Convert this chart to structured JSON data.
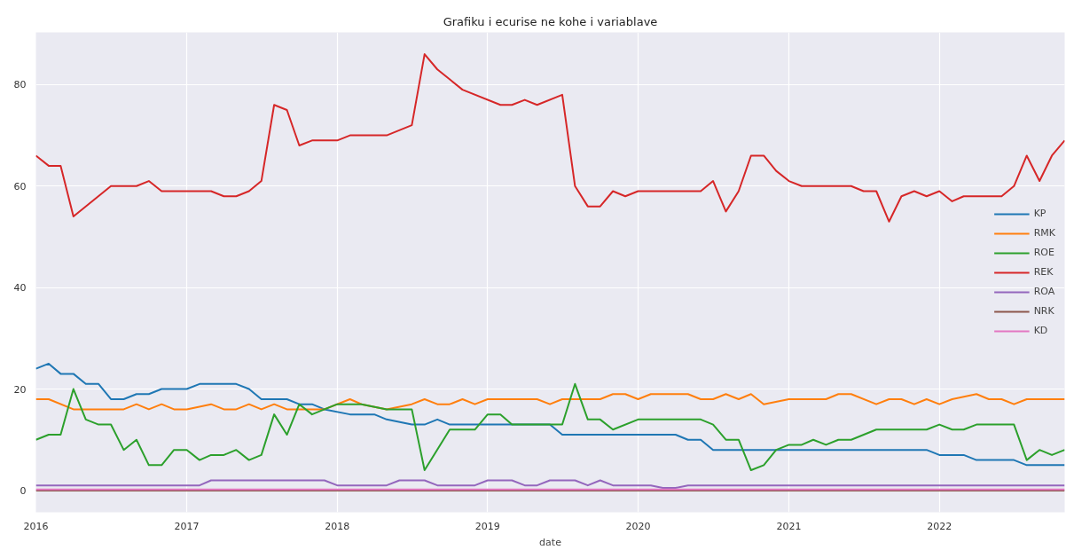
{
  "chart_data": {
    "type": "line",
    "title": "Grafiku i ecurise ne kohe i variablave",
    "xlabel": "date",
    "xlim": [
      "2016-01",
      "2022-11"
    ],
    "xticks": [
      "2016",
      "2017",
      "2018",
      "2019",
      "2020",
      "2021",
      "2022"
    ],
    "ylim": [
      -4.3,
      90.3
    ],
    "yticks": [
      0,
      20,
      40,
      60,
      80
    ],
    "grid": true,
    "legend": "right",
    "marker": "none",
    "line_style": "solid",
    "series": [
      {
        "name": "KP",
        "color": "#1f77b4",
        "x": [
          "2016-01",
          "2016-02",
          "2016-03",
          "2016-04",
          "2016-05",
          "2016-06",
          "2016-07",
          "2016-08",
          "2016-09",
          "2016-10",
          "2016-11",
          "2017-01",
          "2017-02",
          "2017-05",
          "2017-06",
          "2017-07",
          "2017-09",
          "2017-10",
          "2017-11",
          "2017-12",
          "2018-02",
          "2018-04",
          "2018-05",
          "2018-07",
          "2018-08",
          "2018-09",
          "2018-10",
          "2019-06",
          "2019-07",
          "2020-04",
          "2020-05",
          "2020-06",
          "2020-07",
          "2021-12",
          "2022-01",
          "2022-03",
          "2022-04",
          "2022-07",
          "2022-08",
          "2022-11"
        ],
        "values": [
          24,
          25,
          23,
          23,
          21,
          21,
          18,
          18,
          19,
          19,
          20,
          20,
          21,
          21,
          20,
          18,
          18,
          17,
          17,
          16,
          15,
          15,
          14,
          13,
          13,
          14,
          13,
          13,
          11,
          11,
          10,
          10,
          8,
          8,
          7,
          7,
          6,
          6,
          5,
          5
        ]
      },
      {
        "name": "RMK",
        "color": "#ff7f0e",
        "x": [
          "2016-01",
          "2016-02",
          "2016-04",
          "2016-08",
          "2016-09",
          "2016-10",
          "2016-11",
          "2016-12",
          "2017-01",
          "2017-03",
          "2017-04",
          "2017-05",
          "2017-06",
          "2017-07",
          "2017-08",
          "2017-09",
          "2017-10",
          "2017-12",
          "2018-02",
          "2018-03",
          "2018-05",
          "2018-07",
          "2018-08",
          "2018-09",
          "2018-10",
          "2018-11",
          "2018-12",
          "2019-01",
          "2019-05",
          "2019-06",
          "2019-07",
          "2019-08",
          "2019-10",
          "2019-11",
          "2019-12",
          "2020-01",
          "2020-02",
          "2020-03",
          "2020-05",
          "2020-06",
          "2020-07",
          "2020-08",
          "2020-09",
          "2020-10",
          "2020-11",
          "2021-01",
          "2021-02",
          "2021-04",
          "2021-05",
          "2021-06",
          "2021-08",
          "2021-09",
          "2021-10",
          "2021-11",
          "2021-12",
          "2022-01",
          "2022-02",
          "2022-04",
          "2022-05",
          "2022-06",
          "2022-07",
          "2022-08",
          "2022-09",
          "2022-11"
        ],
        "values": [
          18,
          18,
          16,
          16,
          17,
          16,
          17,
          16,
          16,
          17,
          16,
          16,
          17,
          16,
          17,
          16,
          16,
          16,
          18,
          17,
          16,
          17,
          18,
          17,
          17,
          18,
          17,
          18,
          18,
          17,
          18,
          18,
          18,
          19,
          19,
          18,
          19,
          19,
          19,
          18,
          18,
          19,
          18,
          19,
          17,
          18,
          18,
          18,
          19,
          19,
          17,
          18,
          18,
          17,
          18,
          17,
          18,
          19,
          18,
          18,
          17,
          18,
          18,
          18
        ]
      },
      {
        "name": "ROE",
        "color": "#2ca02c",
        "x": [
          "2016-01",
          "2016-02",
          "2016-03",
          "2016-04",
          "2016-05",
          "2016-06",
          "2016-07",
          "2016-08",
          "2016-09",
          "2016-10",
          "2016-11",
          "2016-12",
          "2017-01",
          "2017-02",
          "2017-03",
          "2017-04",
          "2017-05",
          "2017-06",
          "2017-07",
          "2017-08",
          "2017-09",
          "2017-10",
          "2017-11",
          "2017-12",
          "2018-01",
          "2018-03",
          "2018-05",
          "2018-07",
          "2018-08",
          "2018-10",
          "2018-11",
          "2018-12",
          "2019-01",
          "2019-02",
          "2019-03",
          "2019-07",
          "2019-08",
          "2019-09",
          "2019-10",
          "2019-11",
          "2020-01",
          "2020-06",
          "2020-07",
          "2020-08",
          "2020-09",
          "2020-10",
          "2020-11",
          "2020-12",
          "2021-01",
          "2021-02",
          "2021-03",
          "2021-04",
          "2021-05",
          "2021-06",
          "2021-08",
          "2021-12",
          "2022-01",
          "2022-02",
          "2022-03",
          "2022-04",
          "2022-07",
          "2022-08",
          "2022-09",
          "2022-10",
          "2022-11"
        ],
        "values": [
          10,
          11,
          11,
          20,
          14,
          13,
          13,
          8,
          10,
          5,
          5,
          8,
          8,
          6,
          7,
          7,
          8,
          6,
          7,
          15,
          11,
          17,
          15,
          16,
          17,
          17,
          16,
          16,
          4,
          12,
          12,
          12,
          15,
          15,
          13,
          13,
          21,
          14,
          14,
          12,
          14,
          14,
          13,
          10,
          10,
          4,
          5,
          8,
          9,
          9,
          10,
          9,
          10,
          10,
          12,
          12,
          13,
          12,
          12,
          13,
          13,
          6,
          8,
          7,
          8
        ]
      },
      {
        "name": "REK",
        "color": "#d62728",
        "x": [
          "2016-01",
          "2016-02",
          "2016-03",
          "2016-04",
          "2016-07",
          "2016-09",
          "2016-10",
          "2016-11",
          "2017-03",
          "2017-04",
          "2017-05",
          "2017-06",
          "2017-07",
          "2017-08",
          "2017-09",
          "2017-10",
          "2017-11",
          "2018-01",
          "2018-02",
          "2018-05",
          "2018-07",
          "2018-08",
          "2018-09",
          "2018-11",
          "2019-02",
          "2019-03",
          "2019-04",
          "2019-05",
          "2019-07",
          "2019-08",
          "2019-09",
          "2019-10",
          "2019-11",
          "2019-12",
          "2020-01",
          "2020-06",
          "2020-07",
          "2020-08",
          "2020-09",
          "2020-10",
          "2020-11",
          "2020-12",
          "2021-01",
          "2021-02",
          "2021-06",
          "2021-07",
          "2021-08",
          "2021-09",
          "2021-10",
          "2021-11",
          "2021-12",
          "2022-01",
          "2022-02",
          "2022-03",
          "2022-06",
          "2022-07",
          "2022-08",
          "2022-09",
          "2022-10",
          "2022-11"
        ],
        "values": [
          66,
          64,
          64,
          54,
          60,
          60,
          61,
          59,
          59,
          58,
          58,
          59,
          61,
          76,
          75,
          68,
          69,
          69,
          70,
          70,
          72,
          86,
          83,
          79,
          76,
          76,
          77,
          76,
          78,
          60,
          56,
          56,
          59,
          58,
          59,
          59,
          61,
          55,
          59,
          66,
          66,
          63,
          61,
          60,
          60,
          59,
          59,
          53,
          58,
          59,
          58,
          59,
          57,
          58,
          58,
          60,
          66,
          61,
          66,
          69
        ]
      },
      {
        "name": "ROA",
        "color": "#9467bd",
        "x": [
          "2016-01",
          "2017-02",
          "2017-03",
          "2017-12",
          "2018-01",
          "2018-05",
          "2018-06",
          "2018-08",
          "2018-09",
          "2018-12",
          "2019-01",
          "2019-03",
          "2019-04",
          "2019-05",
          "2019-06",
          "2019-08",
          "2019-09",
          "2019-10",
          "2019-11",
          "2020-02",
          "2020-03",
          "2020-04",
          "2020-05",
          "2022-11"
        ],
        "values": [
          1,
          1,
          2,
          2,
          1,
          1,
          2,
          2,
          1,
          1,
          2,
          2,
          1,
          1,
          2,
          2,
          1,
          2,
          1,
          1,
          0.5,
          0.5,
          1,
          1
        ]
      },
      {
        "name": "NRK",
        "color": "#8c564b",
        "x": [
          "2016-01",
          "2022-11"
        ],
        "values": [
          0,
          0
        ]
      },
      {
        "name": "KD",
        "color": "#e377c2",
        "x": [
          "2016-01",
          "2022-11"
        ],
        "values": [
          0.2,
          0.2
        ]
      }
    ]
  }
}
